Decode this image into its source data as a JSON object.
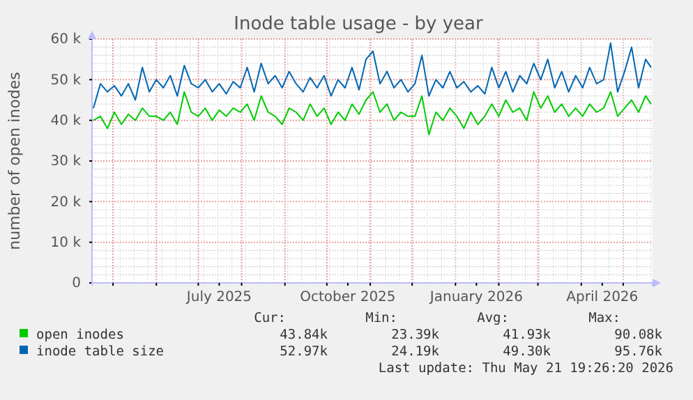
{
  "chart_data": {
    "type": "line",
    "title": "Inode table usage - by year",
    "ylabel": "number of open inodes",
    "x": [
      "2025-04-17",
      "2025-04-22",
      "2025-04-27",
      "2025-05-02",
      "2025-05-07",
      "2025-05-12",
      "2025-05-17",
      "2025-05-22",
      "2025-05-27",
      "2025-06-01",
      "2025-06-06",
      "2025-06-11",
      "2025-06-16",
      "2025-06-21",
      "2025-06-26",
      "2025-07-01",
      "2025-07-06",
      "2025-07-11",
      "2025-07-16",
      "2025-07-21",
      "2025-07-26",
      "2025-07-31",
      "2025-08-05",
      "2025-08-10",
      "2025-08-15",
      "2025-08-20",
      "2025-08-25",
      "2025-08-30",
      "2025-09-04",
      "2025-09-09",
      "2025-09-14",
      "2025-09-19",
      "2025-09-24",
      "2025-09-29",
      "2025-10-04",
      "2025-10-09",
      "2025-10-14",
      "2025-10-19",
      "2025-10-24",
      "2025-10-29",
      "2025-11-03",
      "2025-11-08",
      "2025-11-13",
      "2025-11-18",
      "2025-11-23",
      "2025-11-28",
      "2025-12-03",
      "2025-12-08",
      "2025-12-13",
      "2025-12-18",
      "2025-12-23",
      "2025-12-28",
      "2026-01-02",
      "2026-01-07",
      "2026-01-12",
      "2026-01-17",
      "2026-01-22",
      "2026-01-27",
      "2026-02-01",
      "2026-02-06",
      "2026-02-11",
      "2026-02-16",
      "2026-02-21",
      "2026-02-26",
      "2026-03-03",
      "2026-03-08",
      "2026-03-13",
      "2026-03-18",
      "2026-03-23",
      "2026-03-28",
      "2026-04-02",
      "2026-04-07",
      "2026-04-12",
      "2026-04-17",
      "2026-04-22",
      "2026-04-27",
      "2026-05-02",
      "2026-05-07",
      "2026-05-12",
      "2026-05-17",
      "2026-05-21"
    ],
    "series": [
      {
        "name": "open inodes",
        "color": "#00cc00",
        "values": [
          40000,
          41000,
          38000,
          42000,
          39000,
          41500,
          40000,
          43000,
          41000,
          41000,
          40000,
          42000,
          39000,
          47000,
          42000,
          41000,
          43000,
          40000,
          42500,
          41000,
          43000,
          42000,
          44000,
          40000,
          46000,
          42000,
          41000,
          39000,
          43000,
          42000,
          40000,
          44000,
          41000,
          43000,
          39000,
          42000,
          40000,
          44000,
          41500,
          45000,
          47000,
          42000,
          44000,
          40000,
          42000,
          41000,
          41000,
          46000,
          36500,
          42000,
          40000,
          43000,
          41000,
          38000,
          42000,
          39000,
          41000,
          44000,
          41000,
          45000,
          42000,
          43000,
          40000,
          47000,
          43000,
          46000,
          42000,
          44000,
          41000,
          43000,
          41000,
          44000,
          42000,
          43000,
          47000,
          41000,
          43000,
          45000,
          42000,
          46000,
          44000
        ]
      },
      {
        "name": "inode table size",
        "color": "#0066b3",
        "values": [
          43000,
          49000,
          47000,
          48500,
          46000,
          49000,
          45000,
          53000,
          47000,
          50000,
          48000,
          51000,
          46000,
          53500,
          49000,
          48000,
          50000,
          47000,
          49000,
          46500,
          49500,
          48000,
          53000,
          47000,
          54000,
          49000,
          51000,
          48000,
          52000,
          49000,
          47000,
          50500,
          48000,
          51000,
          46000,
          50000,
          48000,
          53000,
          47500,
          55000,
          57000,
          49000,
          52000,
          48000,
          50000,
          47000,
          49000,
          56000,
          46000,
          50000,
          48000,
          52000,
          48000,
          49500,
          47000,
          48500,
          46500,
          53000,
          48000,
          52000,
          47000,
          51000,
          49000,
          54000,
          50000,
          55000,
          48000,
          52000,
          47000,
          51000,
          48000,
          53000,
          49000,
          50000,
          59000,
          47000,
          52000,
          58000,
          48000,
          55000,
          53000
        ]
      }
    ],
    "xlim": [
      "2025-04-16",
      "2026-05-22"
    ],
    "xticks": [
      {
        "value": "2025-05-01",
        "label": null
      },
      {
        "value": "2025-06-01",
        "label": null
      },
      {
        "value": "2025-07-01",
        "label": null
      },
      {
        "value": "2025-07-16",
        "label": "July 2025"
      },
      {
        "value": "2025-08-01",
        "label": null
      },
      {
        "value": "2025-09-01",
        "label": null
      },
      {
        "value": "2025-10-01",
        "label": null
      },
      {
        "value": "2025-10-16",
        "label": "October 2025"
      },
      {
        "value": "2025-11-01",
        "label": null
      },
      {
        "value": "2025-12-01",
        "label": null
      },
      {
        "value": "2026-01-01",
        "label": null
      },
      {
        "value": "2026-01-16",
        "label": "January 2026"
      },
      {
        "value": "2026-02-01",
        "label": null
      },
      {
        "value": "2026-03-01",
        "label": null
      },
      {
        "value": "2026-04-01",
        "label": null
      },
      {
        "value": "2026-04-16",
        "label": "April 2026"
      },
      {
        "value": "2026-05-01",
        "label": null
      }
    ],
    "ylim": [
      0,
      60000
    ],
    "yticks": [
      0,
      {
        "value": 10000,
        "label": "10 k"
      },
      {
        "value": 20000,
        "label": "20 k"
      },
      {
        "value": 30000,
        "label": "30 k"
      },
      {
        "value": 40000,
        "label": "40 k"
      },
      {
        "value": 50000,
        "label": "50 k"
      },
      {
        "value": 60000,
        "label": "60 k"
      }
    ],
    "grid": true,
    "legend": "bottom",
    "line_style": "solid",
    "annotations": [
      "Cur:",
      "Min:",
      "Avg:",
      "Max:",
      "43.84k",
      "23.39k",
      "41.93k",
      "90.08k",
      "52.97k",
      "24.19k",
      "49.30k",
      "95.76k",
      "Last update: Thu May 21 19:26:20 2026"
    ]
  }
}
